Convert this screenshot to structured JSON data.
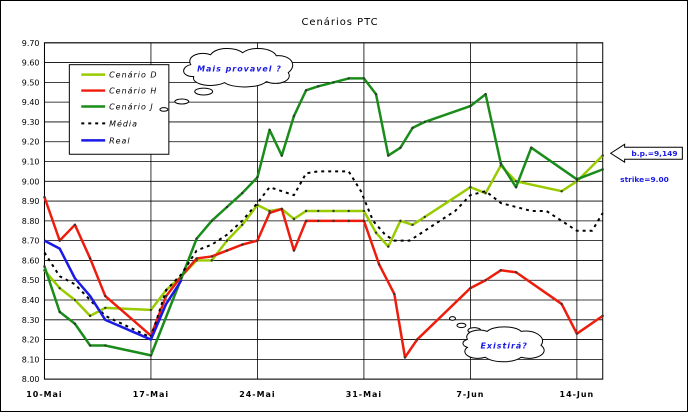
{
  "chart_data": {
    "type": "line",
    "title": "Cenários PTC",
    "ylim": [
      8.0,
      9.7
    ],
    "y_ticks": [
      "8.00",
      "8.10",
      "8.20",
      "8.30",
      "8.40",
      "8.50",
      "8.60",
      "8.70",
      "8.80",
      "8.90",
      "9.00",
      "9.10",
      "9.20",
      "9.30",
      "9.40",
      "9.50",
      "9.60",
      "9.70"
    ],
    "x_ticks": [
      "10-Mai",
      "17-Mai",
      "24-Mai",
      "31-Mai",
      "7-Jun",
      "14-Jun"
    ],
    "x_tick_days": [
      0,
      7,
      14,
      21,
      28,
      35
    ],
    "xlim_days": [
      0,
      36.7
    ],
    "grid": true,
    "legend_position": "top-left",
    "series": [
      {
        "name": "Cenário D",
        "color": "#99cc00",
        "width": 2.5,
        "dash": "",
        "marker": "dot",
        "x": [
          0,
          1,
          2,
          3,
          4,
          7,
          8,
          9,
          10,
          11,
          12,
          13,
          14,
          14.8,
          15.6,
          16.4,
          17.2,
          18,
          19,
          20,
          21,
          21.8,
          22.6,
          23.4,
          24.2,
          25,
          28,
          29,
          30,
          31,
          34,
          35,
          36.7
        ],
        "y": [
          8.55,
          8.46,
          8.4,
          8.32,
          8.36,
          8.35,
          8.45,
          8.52,
          8.6,
          8.6,
          8.7,
          8.78,
          8.88,
          8.85,
          8.86,
          8.81,
          8.85,
          8.85,
          8.85,
          8.85,
          8.85,
          8.74,
          8.67,
          8.8,
          8.78,
          8.82,
          8.97,
          8.94,
          9.08,
          9.0,
          8.95,
          9.0,
          9.13
        ]
      },
      {
        "name": "Cenário H",
        "color": "#ee1c0c",
        "width": 2.5,
        "dash": "",
        "marker": "dot",
        "x": [
          0,
          1,
          2,
          3,
          4,
          7,
          8,
          9,
          10,
          11,
          12,
          13,
          14,
          14.8,
          15.6,
          16.4,
          17.2,
          18,
          19,
          20,
          21,
          22,
          23,
          23.7,
          24.5,
          28,
          29,
          30,
          31,
          34,
          35,
          36.7
        ],
        "y": [
          8.92,
          8.7,
          8.78,
          8.61,
          8.42,
          8.22,
          8.42,
          8.52,
          8.61,
          8.62,
          8.65,
          8.68,
          8.7,
          8.84,
          8.86,
          8.65,
          8.8,
          8.8,
          8.8,
          8.8,
          8.8,
          8.58,
          8.43,
          8.11,
          8.2,
          8.46,
          8.5,
          8.55,
          8.54,
          8.38,
          8.23,
          8.32
        ]
      },
      {
        "name": "Cenário J",
        "color": "#1a8c1a",
        "width": 2.5,
        "dash": "",
        "marker": "dot",
        "x": [
          0,
          1,
          2,
          3,
          4,
          7,
          9,
          10,
          11,
          12,
          13,
          14,
          14.8,
          15.6,
          16.4,
          17.2,
          18,
          19,
          20,
          21,
          21.8,
          22.6,
          23.4,
          24.2,
          25,
          28,
          29,
          30,
          31,
          32,
          35,
          36.7
        ],
        "y": [
          8.57,
          8.34,
          8.28,
          8.17,
          8.17,
          8.12,
          8.51,
          8.71,
          8.8,
          8.87,
          8.94,
          9.02,
          9.26,
          9.13,
          9.33,
          9.46,
          9.48,
          9.5,
          9.52,
          9.52,
          9.44,
          9.13,
          9.17,
          9.27,
          9.3,
          9.38,
          9.44,
          9.09,
          8.97,
          9.17,
          9.01,
          9.06
        ]
      },
      {
        "name": "Média",
        "color": "#000000",
        "width": 2,
        "dash": "3,4",
        "marker": "none",
        "x": [
          0,
          1,
          2,
          3,
          4,
          7,
          8,
          9,
          10,
          11,
          12,
          13,
          14,
          14.8,
          15.6,
          16.4,
          17.2,
          18,
          19,
          20,
          20.8,
          21.6,
          22.4,
          23,
          24,
          25,
          26,
          27,
          28,
          29,
          30,
          31,
          32,
          33,
          34,
          35,
          36,
          36.7
        ],
        "y": [
          8.64,
          8.52,
          8.48,
          8.4,
          8.32,
          8.21,
          8.45,
          8.53,
          8.65,
          8.68,
          8.73,
          8.8,
          8.89,
          8.97,
          8.95,
          8.93,
          9.04,
          9.05,
          9.05,
          9.05,
          8.95,
          8.8,
          8.73,
          8.7,
          8.7,
          8.75,
          8.8,
          8.85,
          8.93,
          8.95,
          8.89,
          8.87,
          8.85,
          8.85,
          8.8,
          8.75,
          8.75,
          8.84
        ]
      },
      {
        "name": "Real",
        "color": "#1a1ae6",
        "width": 2.5,
        "dash": "",
        "marker": "none",
        "x": [
          0,
          1,
          2,
          3,
          4,
          7,
          8,
          9
        ],
        "y": [
          8.7,
          8.66,
          8.51,
          8.42,
          8.3,
          8.2,
          8.38,
          8.5
        ]
      }
    ],
    "annotations": {
      "mais_provavel": "Mais provavel ?",
      "existira": "Existirá?",
      "bp": "b.p.=9,149",
      "strike": "strike=9.00"
    }
  }
}
